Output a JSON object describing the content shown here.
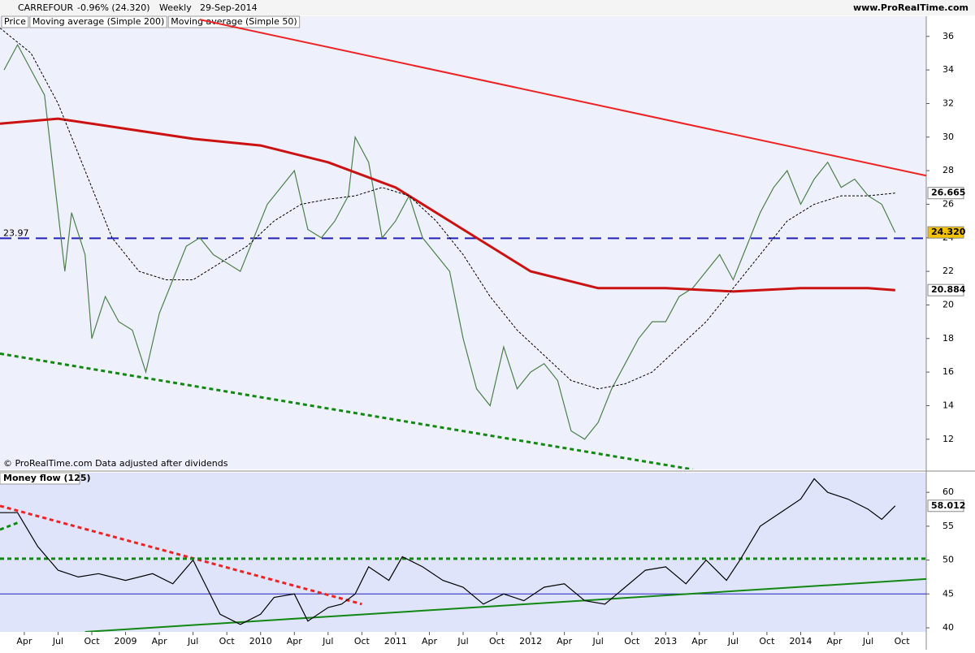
{
  "header": {
    "symbol": "CARREFOUR",
    "change": "-0.96% (24.320)",
    "period": "Weekly",
    "date": "29-Sep-2014",
    "site": "www.ProRealTime.com",
    "footer": "© ProRealTime.com  Data adjusted after dividends"
  },
  "chart_data": [
    {
      "type": "line",
      "legend": [
        "Price",
        "Moving average (Simple 200)",
        "Moving average (Simple 50)"
      ],
      "xlim": [
        2008.07,
        2014.93
      ],
      "ylim": [
        10.2,
        37.2
      ],
      "yticks": [
        12,
        14,
        16,
        18,
        20,
        22,
        24,
        26,
        28,
        30,
        32,
        34,
        36
      ],
      "series": [
        {
          "name": "Price",
          "color": "#4d7f4d",
          "width": 1.2,
          "dash": "none",
          "x": [
            2008.1,
            2008.2,
            2008.3,
            2008.4,
            2008.45,
            2008.5,
            2008.55,
            2008.6,
            2008.7,
            2008.75,
            2008.85,
            2008.95,
            2009.05,
            2009.15,
            2009.25,
            2009.35,
            2009.45,
            2009.55,
            2009.65,
            2009.75,
            2009.85,
            2009.95,
            2010.05,
            2010.15,
            2010.25,
            2010.35,
            2010.45,
            2010.55,
            2010.65,
            2010.7,
            2010.8,
            2010.9,
            2011.0,
            2011.1,
            2011.2,
            2011.3,
            2011.4,
            2011.5,
            2011.6,
            2011.7,
            2011.8,
            2011.9,
            2012.0,
            2012.1,
            2012.2,
            2012.3,
            2012.4,
            2012.5,
            2012.6,
            2012.7,
            2012.8,
            2012.9,
            2013.0,
            2013.1,
            2013.2,
            2013.3,
            2013.4,
            2013.5,
            2013.6,
            2013.7,
            2013.8,
            2013.9,
            2014.0,
            2014.1,
            2014.2,
            2014.3,
            2014.4,
            2014.5,
            2014.6,
            2014.7
          ],
          "values": [
            34,
            35.5,
            34,
            32.5,
            29,
            25.5,
            22,
            25.5,
            23,
            18,
            20.5,
            19,
            18.5,
            16,
            19.5,
            21.5,
            23.5,
            24,
            23,
            22.5,
            22,
            24,
            26,
            27,
            28,
            24.5,
            24,
            25,
            26.5,
            30,
            28.5,
            24,
            25,
            26.5,
            24,
            23,
            22,
            18,
            15,
            14,
            17.5,
            15,
            16,
            16.5,
            15.5,
            12.5,
            12,
            13,
            15,
            16.5,
            18,
            19,
            19,
            20.5,
            21,
            22,
            23,
            21.5,
            23.5,
            25.5,
            27,
            28,
            26,
            27.5,
            28.5,
            27,
            27.5,
            26.5,
            26,
            24.32
          ]
        },
        {
          "name": "Moving average (Simple 200)",
          "color": "#cc1111",
          "width": 3,
          "dash": "none",
          "x": [
            2008.07,
            2008.5,
            2009.0,
            2009.5,
            2010.0,
            2010.5,
            2011.0,
            2011.5,
            2012.0,
            2012.5,
            2013.0,
            2013.5,
            2014.0,
            2014.5,
            2014.7
          ],
          "values": [
            30.8,
            31.1,
            30.5,
            29.9,
            29.5,
            28.5,
            27,
            24.5,
            22,
            21,
            21,
            20.8,
            21,
            21,
            20.884
          ]
        },
        {
          "name": "Moving average (Simple 50)",
          "color": "#000000",
          "width": 1,
          "dash": "3 2",
          "x": [
            2008.07,
            2008.3,
            2008.5,
            2008.7,
            2008.9,
            2009.1,
            2009.3,
            2009.5,
            2009.7,
            2009.9,
            2010.1,
            2010.3,
            2010.5,
            2010.7,
            2010.9,
            2011.1,
            2011.3,
            2011.5,
            2011.7,
            2011.9,
            2012.1,
            2012.3,
            2012.5,
            2012.7,
            2012.9,
            2013.1,
            2013.3,
            2013.5,
            2013.7,
            2013.9,
            2014.1,
            2014.3,
            2014.5,
            2014.7
          ],
          "values": [
            36.5,
            35,
            32,
            28,
            24,
            22,
            21.5,
            21.5,
            22.5,
            23.5,
            25,
            26,
            26.3,
            26.5,
            27,
            26.5,
            25,
            23,
            20.5,
            18.5,
            17,
            15.5,
            15,
            15.3,
            16,
            17.5,
            19,
            21,
            23,
            25,
            26,
            26.5,
            26.5,
            26.665
          ]
        }
      ],
      "trendlines": [
        {
          "color": "#ee2222",
          "width": 2,
          "dash": "none",
          "x": [
            2009.55,
            2014.93
          ],
          "values": [
            37,
            27.7
          ]
        },
        {
          "color": "#118811",
          "width": 3,
          "dash": "5 4",
          "x": [
            2008.07,
            2013.2
          ],
          "values": [
            17.1,
            10.2
          ]
        }
      ],
      "hlines": [
        {
          "value": 23.97,
          "color": "#2222bb",
          "dash": "14 8"
        }
      ],
      "axis_labels": [
        {
          "value": 26.665,
          "label": "26.665",
          "color": "#000000",
          "bg": "#ffffff"
        },
        {
          "value": 24.32,
          "label": "24.320",
          "color": "#000000",
          "bg": "#f2c200"
        },
        {
          "value": 20.884,
          "label": "20.884",
          "color": "#cc1111",
          "bg": "#ffffff"
        }
      ]
    },
    {
      "type": "line",
      "title": "Money flow (125)",
      "xlim": [
        2008.07,
        2014.93
      ],
      "ylim": [
        39.4,
        62.9
      ],
      "yticks": [
        40,
        45,
        50,
        55,
        60
      ],
      "xticks": [
        {
          "value": 2008.25,
          "label": "Apr"
        },
        {
          "value": 2008.5,
          "label": "Jul"
        },
        {
          "value": 2008.75,
          "label": "Oct"
        },
        2009,
        {
          "value": 2009.25,
          "label": "Apr"
        },
        {
          "value": 2009.5,
          "label": "Jul"
        },
        {
          "value": 2009.75,
          "label": "Oct"
        },
        2010,
        {
          "value": 2010.25,
          "label": "Apr"
        },
        {
          "value": 2010.5,
          "label": "Jul"
        },
        {
          "value": 2010.75,
          "label": "Oct"
        },
        2011,
        {
          "value": 2011.25,
          "label": "Apr"
        },
        {
          "value": 2011.5,
          "label": "Jul"
        },
        {
          "value": 2011.75,
          "label": "Oct"
        },
        2012,
        {
          "value": 2012.25,
          "label": "Apr"
        },
        {
          "value": 2012.5,
          "label": "Jul"
        },
        {
          "value": 2012.75,
          "label": "Oct"
        },
        2013,
        {
          "value": 2013.25,
          "label": "Apr"
        },
        {
          "value": 2013.5,
          "label": "Jul"
        },
        {
          "value": 2013.75,
          "label": "Oct"
        },
        2014,
        {
          "value": 2014.25,
          "label": "Apr"
        },
        {
          "value": 2014.5,
          "label": "Jul"
        },
        {
          "value": 2014.75,
          "label": "Oct"
        }
      ],
      "series": [
        {
          "color": "#000000",
          "width": 1.2,
          "dash": "none",
          "x": [
            2008.07,
            2008.2,
            2008.35,
            2008.5,
            2008.65,
            2008.8,
            2009.0,
            2009.2,
            2009.35,
            2009.5,
            2009.6,
            2009.7,
            2009.85,
            2010.0,
            2010.1,
            2010.25,
            2010.35,
            2010.5,
            2010.6,
            2010.7,
            2010.8,
            2010.95,
            2011.05,
            2011.2,
            2011.35,
            2011.5,
            2011.65,
            2011.8,
            2011.95,
            2012.1,
            2012.25,
            2012.4,
            2012.55,
            2012.7,
            2012.85,
            2013.0,
            2013.15,
            2013.3,
            2013.45,
            2013.55,
            2013.7,
            2013.85,
            2014.0,
            2014.1,
            2014.2,
            2014.35,
            2014.5,
            2014.6,
            2014.7
          ],
          "values": [
            57,
            57,
            52,
            48.5,
            47.5,
            48,
            47,
            48,
            46.5,
            50,
            46,
            42,
            40.5,
            42,
            44.5,
            45,
            41,
            43,
            43.5,
            45,
            49,
            47,
            50.5,
            49,
            47,
            46,
            43.5,
            45,
            44,
            46,
            46.5,
            44,
            43.5,
            46,
            48.5,
            49,
            46.5,
            50,
            47,
            50,
            55,
            57,
            59,
            62,
            60,
            59,
            57.5,
            56,
            58.012
          ]
        }
      ],
      "trendlines": [
        {
          "color": "#ee2222",
          "width": 3,
          "dash": "5 4",
          "x": [
            2008.07,
            2010.75
          ],
          "values": [
            58,
            43.5
          ]
        },
        {
          "color": "#118811",
          "width": 3,
          "dash": "5 4",
          "x": [
            2008.07,
            2014.93
          ],
          "values": [
            50.2,
            50.2
          ]
        },
        {
          "color": "#118811",
          "width": 2,
          "dash": "none",
          "x": [
            2008.7,
            2014.93
          ],
          "values": [
            39.4,
            47.2
          ]
        },
        {
          "color": "#118811",
          "width": 3,
          "dash": "5 4",
          "x": [
            2008.07,
            2008.2
          ],
          "values": [
            54.5,
            55.5
          ]
        }
      ],
      "hlines": [
        {
          "value": 45,
          "color": "#2222bb",
          "dash": "none"
        }
      ],
      "axis_labels": [
        {
          "value": 58.012,
          "color": "#000000",
          "bg": "#ffffff"
        }
      ]
    }
  ]
}
